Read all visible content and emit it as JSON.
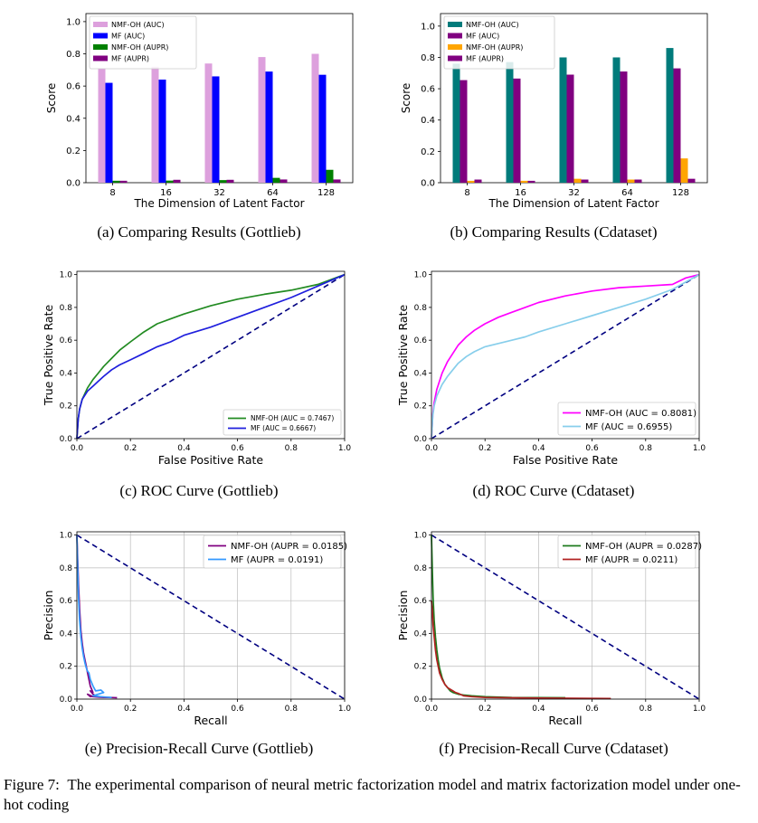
{
  "figure": {
    "caption_label": "Figure 7:",
    "caption_text": "The experimental comparison of neural metric factorization model and matrix factorization model under one-hot coding"
  },
  "chart_data": [
    {
      "id": "a",
      "type": "bar",
      "caption": "(a) Comparing Results (Gottlieb)",
      "xlabel": "The Dimension of Latent Factor",
      "ylabel": "Score",
      "categories": [
        "8",
        "16",
        "32",
        "64",
        "128"
      ],
      "ylim": [
        0,
        1.05
      ],
      "yticks": [
        0.0,
        0.2,
        0.4,
        0.6,
        0.8,
        1.0
      ],
      "legend_position": "upper-left",
      "series": [
        {
          "name": "NMF-OH (AUC)",
          "color": "#dda0dd",
          "values": [
            0.71,
            0.72,
            0.74,
            0.78,
            0.8
          ]
        },
        {
          "name": "MF (AUC)",
          "color": "#0000ff",
          "values": [
            0.62,
            0.64,
            0.66,
            0.69,
            0.67
          ]
        },
        {
          "name": "NMF-OH (AUPR)",
          "color": "#008000",
          "values": [
            0.012,
            0.013,
            0.016,
            0.03,
            0.08
          ]
        },
        {
          "name": "MF (AUPR)",
          "color": "#800080",
          "values": [
            0.012,
            0.018,
            0.018,
            0.02,
            0.02
          ]
        }
      ]
    },
    {
      "id": "b",
      "type": "bar",
      "caption": "(b) Comparing Results (Cdataset)",
      "xlabel": "The Dimension of Latent Factor",
      "ylabel": "Score",
      "categories": [
        "8",
        "16",
        "32",
        "64",
        "128"
      ],
      "ylim": [
        0,
        1.08
      ],
      "yticks": [
        0.0,
        0.2,
        0.4,
        0.6,
        0.8,
        1.0
      ],
      "legend_position": "upper-left",
      "series": [
        {
          "name": "NMF-OH (AUC)",
          "color": "#007b7b",
          "values": [
            0.76,
            0.77,
            0.8,
            0.8,
            0.86
          ]
        },
        {
          "name": "MF (AUC)",
          "color": "#800080",
          "values": [
            0.655,
            0.665,
            0.69,
            0.71,
            0.73
          ]
        },
        {
          "name": "NMF-OH (AUPR)",
          "color": "#ffa500",
          "values": [
            0.012,
            0.012,
            0.025,
            0.02,
            0.155
          ]
        },
        {
          "name": "MF (AUPR)",
          "color": "#800080",
          "values": [
            0.02,
            0.012,
            0.02,
            0.02,
            0.025
          ]
        }
      ]
    },
    {
      "id": "c",
      "type": "line",
      "caption": "(c) ROC Curve (Gottlieb)",
      "xlabel": "False Positive Rate",
      "ylabel": "True Positive Rate",
      "xlim": [
        0,
        1
      ],
      "ylim": [
        0,
        1.02
      ],
      "xticks": [
        0.0,
        0.2,
        0.4,
        0.6,
        0.8,
        1.0
      ],
      "yticks": [
        0.0,
        0.2,
        0.4,
        0.6,
        0.8,
        1.0
      ],
      "grid": false,
      "legend_position": "lower-right",
      "reference_line": {
        "x": [
          0,
          1
        ],
        "y": [
          0,
          1
        ],
        "color": "#000080"
      },
      "series": [
        {
          "name": "NMF-OH (AUC = 0.7467)",
          "color": "#228b22",
          "x": [
            0,
            0.005,
            0.01,
            0.02,
            0.04,
            0.06,
            0.08,
            0.1,
            0.13,
            0.16,
            0.2,
            0.25,
            0.3,
            0.35,
            0.4,
            0.5,
            0.6,
            0.7,
            0.8,
            0.9,
            1.0
          ],
          "y": [
            0,
            0.12,
            0.18,
            0.24,
            0.31,
            0.36,
            0.4,
            0.44,
            0.49,
            0.54,
            0.59,
            0.65,
            0.7,
            0.73,
            0.76,
            0.81,
            0.85,
            0.88,
            0.905,
            0.94,
            1.0
          ]
        },
        {
          "name": "MF (AUC = 0.6667)",
          "color": "#1f1fdd",
          "x": [
            0,
            0.005,
            0.01,
            0.02,
            0.04,
            0.06,
            0.08,
            0.1,
            0.13,
            0.16,
            0.2,
            0.25,
            0.3,
            0.35,
            0.4,
            0.5,
            0.6,
            0.7,
            0.8,
            0.9,
            1.0
          ],
          "y": [
            0,
            0.12,
            0.18,
            0.24,
            0.29,
            0.32,
            0.35,
            0.38,
            0.42,
            0.45,
            0.48,
            0.52,
            0.56,
            0.59,
            0.63,
            0.68,
            0.74,
            0.8,
            0.86,
            0.93,
            1.0
          ]
        }
      ]
    },
    {
      "id": "d",
      "type": "line",
      "caption": "(d) ROC Curve (Cdataset)",
      "xlabel": "False Positive Rate",
      "ylabel": "True Positive Rate",
      "xlim": [
        0,
        1
      ],
      "ylim": [
        0,
        1.02
      ],
      "xticks": [
        0.0,
        0.2,
        0.4,
        0.6,
        0.8,
        1.0
      ],
      "yticks": [
        0.0,
        0.2,
        0.4,
        0.6,
        0.8,
        1.0
      ],
      "grid": false,
      "legend_position": "lower-right",
      "reference_line": {
        "x": [
          0,
          1
        ],
        "y": [
          0,
          1
        ],
        "color": "#000080"
      },
      "series": [
        {
          "name": "NMF-OH (AUC = 0.8081)",
          "color": "#ff00ff",
          "x": [
            0,
            0.005,
            0.01,
            0.02,
            0.04,
            0.06,
            0.08,
            0.1,
            0.13,
            0.16,
            0.2,
            0.25,
            0.3,
            0.35,
            0.4,
            0.5,
            0.6,
            0.7,
            0.8,
            0.9,
            0.95,
            1.0
          ],
          "y": [
            0,
            0.15,
            0.22,
            0.3,
            0.4,
            0.47,
            0.52,
            0.57,
            0.62,
            0.66,
            0.7,
            0.74,
            0.77,
            0.8,
            0.83,
            0.87,
            0.9,
            0.92,
            0.93,
            0.94,
            0.98,
            1.0
          ]
        },
        {
          "name": "MF (AUC = 0.6955)",
          "color": "#87ceeb",
          "x": [
            0,
            0.005,
            0.01,
            0.02,
            0.04,
            0.06,
            0.08,
            0.1,
            0.13,
            0.16,
            0.2,
            0.25,
            0.3,
            0.35,
            0.4,
            0.5,
            0.6,
            0.7,
            0.8,
            0.9,
            1.0
          ],
          "y": [
            0,
            0.14,
            0.2,
            0.26,
            0.33,
            0.38,
            0.42,
            0.46,
            0.5,
            0.53,
            0.56,
            0.58,
            0.6,
            0.62,
            0.65,
            0.7,
            0.75,
            0.8,
            0.85,
            0.91,
            1.0
          ]
        }
      ]
    },
    {
      "id": "e",
      "type": "line",
      "caption": "(e) Precision-Recall Curve (Gottlieb)",
      "xlabel": "Recall",
      "ylabel": "Precision",
      "xlim": [
        0,
        1
      ],
      "ylim": [
        0,
        1.02
      ],
      "xticks": [
        0.0,
        0.2,
        0.4,
        0.6,
        0.8,
        1.0
      ],
      "yticks": [
        0.0,
        0.2,
        0.4,
        0.6,
        0.8,
        1.0
      ],
      "grid": true,
      "legend_position": "upper-right",
      "reference_line": {
        "x": [
          0,
          1
        ],
        "y": [
          1,
          0
        ],
        "color": "#000080"
      },
      "series": [
        {
          "name": "NMF-OH (AUPR = 0.0185)",
          "color": "#800080",
          "x": [
            0,
            0.003,
            0.006,
            0.01,
            0.015,
            0.02,
            0.025,
            0.03,
            0.035,
            0.04,
            0.045,
            0.05,
            0.06,
            0.05,
            0.06,
            0.07,
            0.05,
            0.04,
            0.06,
            0.08,
            0.1,
            0.12,
            0.15
          ],
          "y": [
            1.0,
            0.85,
            0.7,
            0.55,
            0.42,
            0.34,
            0.28,
            0.24,
            0.2,
            0.16,
            0.12,
            0.08,
            0.04,
            0.05,
            0.03,
            0.02,
            0.015,
            0.03,
            0.015,
            0.012,
            0.01,
            0.01,
            0.008
          ]
        },
        {
          "name": "MF (AUPR = 0.0191)",
          "color": "#3399ff",
          "x": [
            0,
            0.003,
            0.006,
            0.01,
            0.015,
            0.02,
            0.025,
            0.03,
            0.035,
            0.04,
            0.045,
            0.05,
            0.06,
            0.07,
            0.09,
            0.1,
            0.08,
            0.06,
            0.09,
            0.11,
            0.13
          ],
          "y": [
            1.0,
            0.8,
            0.62,
            0.48,
            0.38,
            0.31,
            0.26,
            0.22,
            0.19,
            0.17,
            0.16,
            0.12,
            0.08,
            0.05,
            0.055,
            0.04,
            0.03,
            0.02,
            0.015,
            0.012,
            0.01
          ]
        }
      ]
    },
    {
      "id": "f",
      "type": "line",
      "caption": "(f) Precision-Recall Curve (Cdataset)",
      "xlabel": "Recall",
      "ylabel": "Precision",
      "xlim": [
        0,
        1
      ],
      "ylim": [
        0,
        1.02
      ],
      "xticks": [
        0.0,
        0.2,
        0.4,
        0.6,
        0.8,
        1.0
      ],
      "yticks": [
        0.0,
        0.2,
        0.4,
        0.6,
        0.8,
        1.0
      ],
      "grid": true,
      "legend_position": "upper-right",
      "reference_line": {
        "x": [
          0,
          1
        ],
        "y": [
          1,
          0
        ],
        "color": "#000080"
      },
      "series": [
        {
          "name": "NMF-OH (AUPR = 0.0287)",
          "color": "#1e7b1e",
          "x": [
            0,
            0.003,
            0.006,
            0.01,
            0.015,
            0.02,
            0.025,
            0.03,
            0.04,
            0.05,
            0.06,
            0.07,
            0.08,
            0.1,
            0.12,
            0.15,
            0.2,
            0.3,
            0.5
          ],
          "y": [
            1.0,
            0.8,
            0.62,
            0.48,
            0.38,
            0.3,
            0.24,
            0.19,
            0.13,
            0.09,
            0.07,
            0.05,
            0.04,
            0.03,
            0.025,
            0.02,
            0.015,
            0.01,
            0.008
          ]
        },
        {
          "name": "MF (AUPR = 0.0211)",
          "color": "#b22222",
          "x": [
            0,
            0.003,
            0.006,
            0.01,
            0.015,
            0.02,
            0.025,
            0.03,
            0.04,
            0.05,
            0.06,
            0.07,
            0.08,
            0.09,
            0.1,
            0.12,
            0.15,
            0.2,
            0.4,
            0.67
          ],
          "y": [
            0.6,
            0.55,
            0.45,
            0.38,
            0.3,
            0.24,
            0.2,
            0.16,
            0.12,
            0.09,
            0.07,
            0.06,
            0.05,
            0.04,
            0.035,
            0.02,
            0.015,
            0.01,
            0.006,
            0.004
          ]
        }
      ]
    }
  ]
}
